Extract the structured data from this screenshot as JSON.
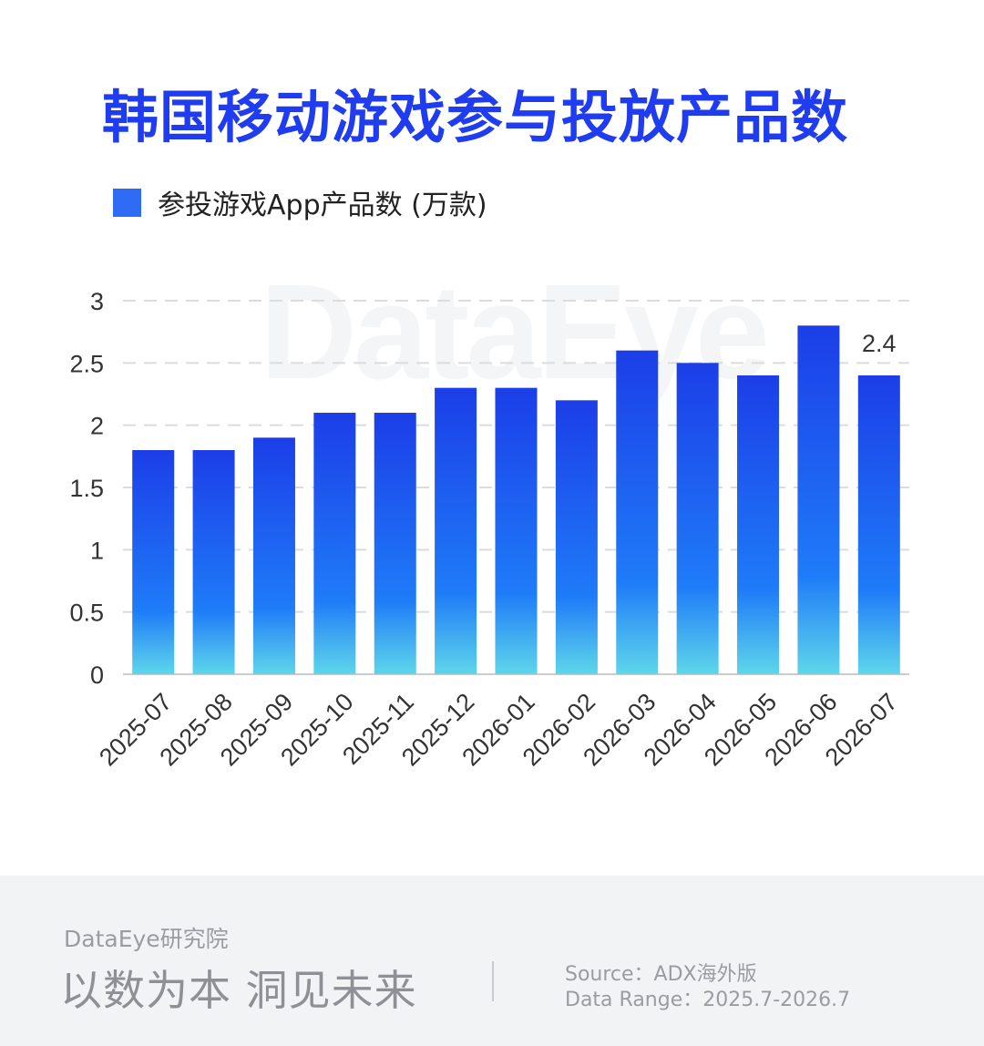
{
  "title": "韩国移动游戏参与投放产品数",
  "legend": {
    "label": "参投游戏App产品数 (万款)",
    "color": "#2f6cf6"
  },
  "watermark": "DataEye",
  "chart_data": {
    "type": "bar",
    "categories": [
      "2025-07",
      "2025-08",
      "2025-09",
      "2025-10",
      "2025-11",
      "2025-12",
      "2026-01",
      "2026-02",
      "2026-03",
      "2026-04",
      "2026-05",
      "2026-06",
      "2026-07"
    ],
    "series": [
      {
        "name": "参投游戏App产品数 (万款)",
        "values": [
          1.8,
          1.8,
          1.9,
          2.1,
          2.1,
          2.3,
          2.3,
          2.2,
          2.6,
          2.5,
          2.4,
          2.8,
          2.4
        ]
      }
    ],
    "yticks": [
      "0",
      "0.5",
      "1",
      "1.5",
      "2",
      "2.5",
      "3"
    ],
    "ylim": [
      0,
      3
    ],
    "grid": true,
    "data_labels": [
      {
        "category": "2026-07",
        "label": "2.4"
      }
    ],
    "colors": {
      "bar_top": "#1c3ee8",
      "bar_mid": "#1f7cf8",
      "bar_bottom": "#5fd6ea",
      "grid": "#dcdcdc",
      "axis": "#cccccc",
      "text": "#333333"
    }
  },
  "footer": {
    "brand": "DataEye研究院",
    "slogan": "以数为本 洞见未来",
    "source": "Source：ADX海外版",
    "range": "Data Range：2025.7-2026.7"
  }
}
